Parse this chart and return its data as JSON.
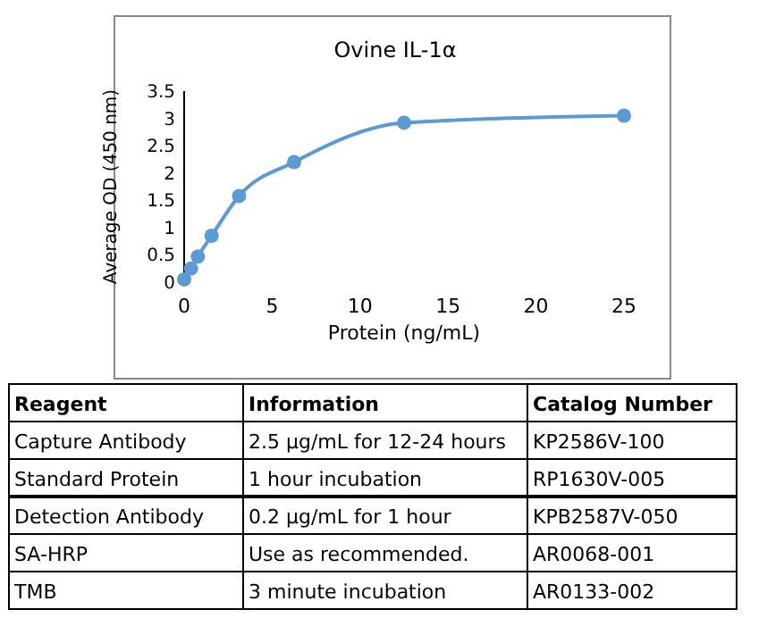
{
  "chart_data": [
    {
      "type": "line",
      "title": "Ovine IL-1α",
      "xlabel": "Protein (ng/mL)",
      "ylabel": "Average OD (450 nm)",
      "x": [
        0,
        0.39,
        0.78,
        1.56,
        3.125,
        6.25,
        12.5,
        25
      ],
      "series": [
        {
          "color": "#5b9bd5",
          "values": [
            0.05,
            0.25,
            0.47,
            0.85,
            1.58,
            2.2,
            2.92,
            3.05
          ]
        }
      ],
      "xlim": [
        0,
        25
      ],
      "xticks": [
        0,
        5,
        10,
        15,
        20,
        25
      ],
      "ylim": [
        0,
        3.5
      ],
      "yticks": [
        0,
        0.5,
        1,
        1.5,
        2,
        2.5,
        3,
        3.5
      ],
      "grid": false,
      "marker": "circle",
      "line_style": "solid"
    },
    {
      "type": "other",
      "categories": [
        "Reagent",
        "Information",
        "Catalog Number"
      ],
      "annotations": [
        "Capture Antibody",
        "2.5 μg/mL for 12-24 hours",
        "KP2586V-100",
        "Standard Protein",
        "1 hour incubation",
        "RP1630V-005",
        "Detection Antibody",
        "0.2 μg/mL for 1 hour",
        "KPB2587V-050",
        "SA-HRP",
        "Use as recommended.",
        "AR0068-001",
        "TMB",
        "3 minute incubation",
        "AR0133-002"
      ]
    }
  ]
}
